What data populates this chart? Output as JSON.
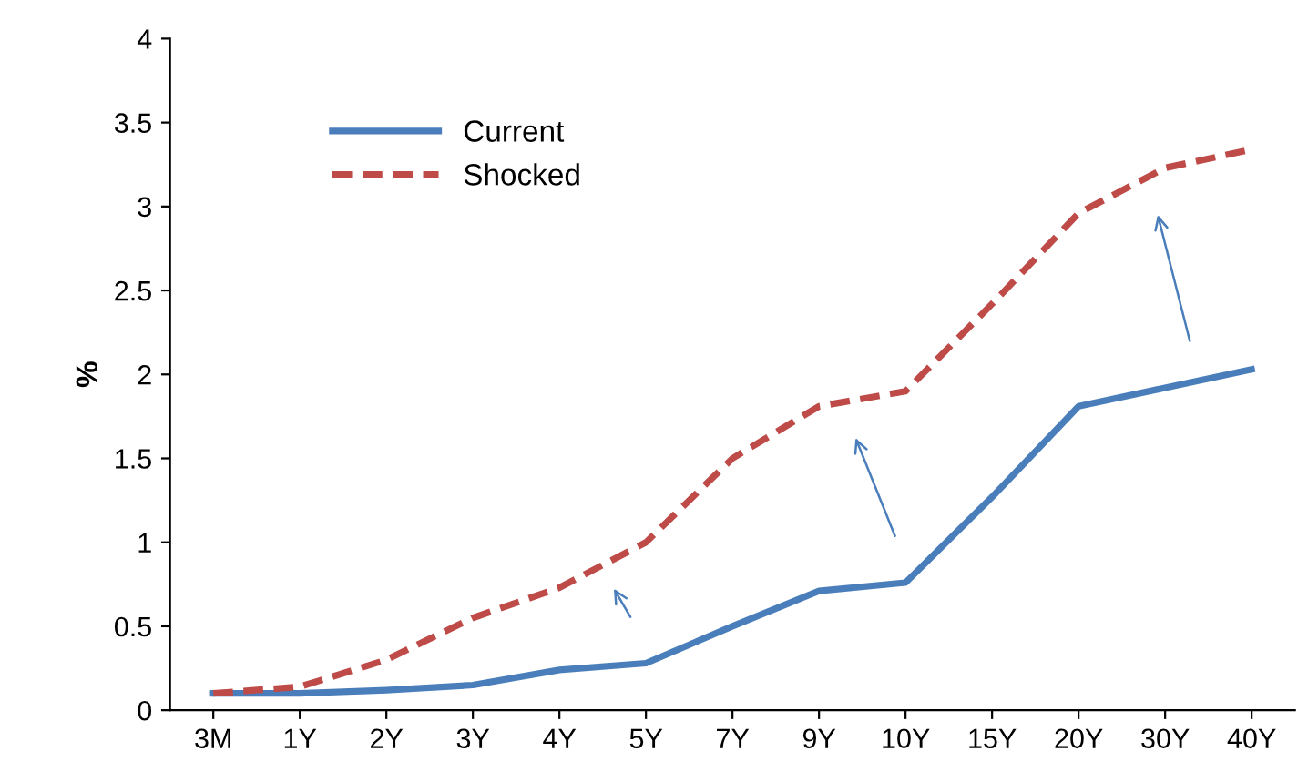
{
  "chart_data": {
    "type": "line",
    "ylabel": "%",
    "categories": [
      "3M",
      "1Y",
      "2Y",
      "3Y",
      "4Y",
      "5Y",
      "7Y",
      "9Y",
      "10Y",
      "15Y",
      "20Y",
      "30Y",
      "40Y"
    ],
    "series": [
      {
        "name": "Current",
        "color": "#4a7ebb",
        "line_style": "solid",
        "values": [
          0.1,
          0.1,
          0.12,
          0.15,
          0.24,
          0.28,
          0.5,
          0.71,
          0.76,
          1.27,
          1.81,
          1.92,
          2.03
        ]
      },
      {
        "name": "Shocked",
        "color": "#be4b48",
        "line_style": "dashed",
        "values": [
          0.1,
          0.14,
          0.3,
          0.55,
          0.73,
          1.0,
          1.5,
          1.81,
          1.9,
          2.42,
          2.96,
          3.23,
          3.34
        ]
      }
    ],
    "ylim": [
      0,
      4
    ],
    "yticks": [
      0,
      0.5,
      1,
      1.5,
      2,
      2.5,
      3,
      3.5,
      4
    ],
    "grid": false,
    "legend": "top left",
    "marker": "none"
  }
}
